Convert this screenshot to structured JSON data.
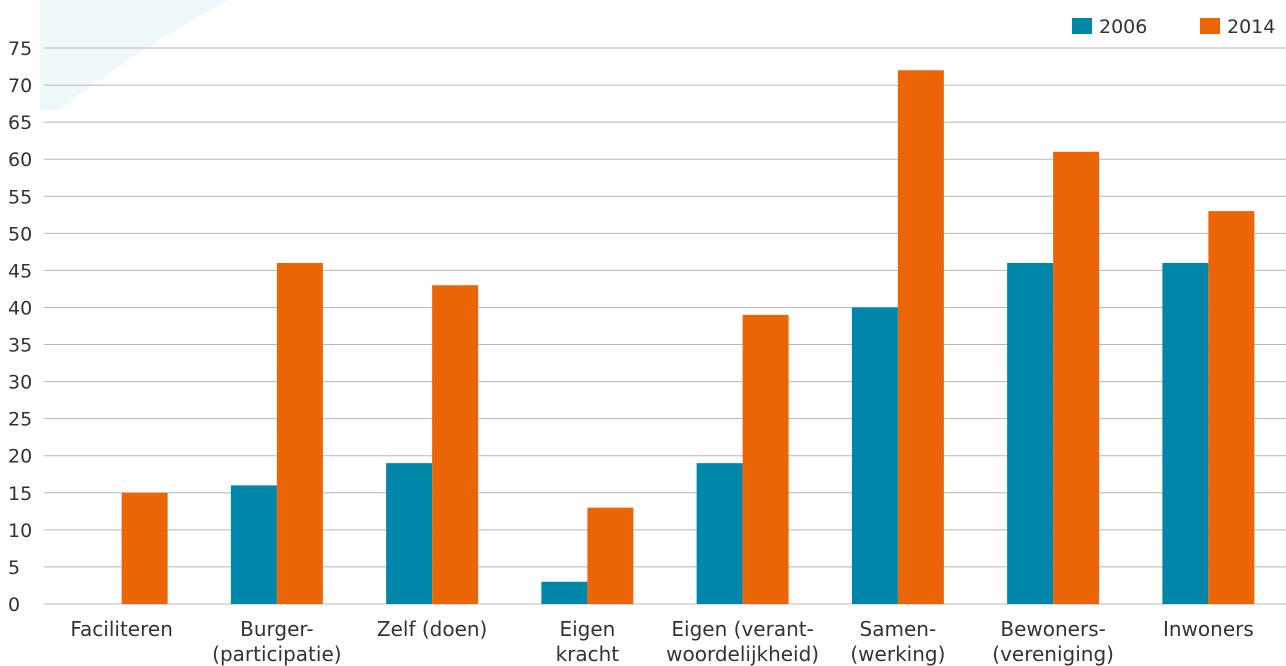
{
  "chart_data": {
    "type": "bar",
    "title": "",
    "xlabel": "",
    "ylabel": "",
    "ylim": [
      0,
      75
    ],
    "yticks": [
      0,
      5,
      10,
      15,
      20,
      25,
      30,
      35,
      40,
      45,
      50,
      55,
      60,
      65,
      70,
      75
    ],
    "grid": true,
    "legend_position": "top-right",
    "categories": [
      [
        "Faciliteren"
      ],
      [
        "Burger-",
        "(participatie)"
      ],
      [
        "Zelf (doen)"
      ],
      [
        "Eigen",
        "kracht"
      ],
      [
        "Eigen (verant-",
        "woordelijkheid)"
      ],
      [
        "Samen-",
        "(werking)"
      ],
      [
        "Bewoners-",
        "(vereniging)"
      ],
      [
        "Inwoners"
      ]
    ],
    "series": [
      {
        "name": "2006",
        "color": "#0086a8",
        "values": [
          0,
          16,
          19,
          3,
          19,
          40,
          46,
          46
        ]
      },
      {
        "name": "2014",
        "color": "#ec6608",
        "values": [
          15,
          46,
          43,
          13,
          39,
          72,
          61,
          53
        ]
      }
    ]
  }
}
